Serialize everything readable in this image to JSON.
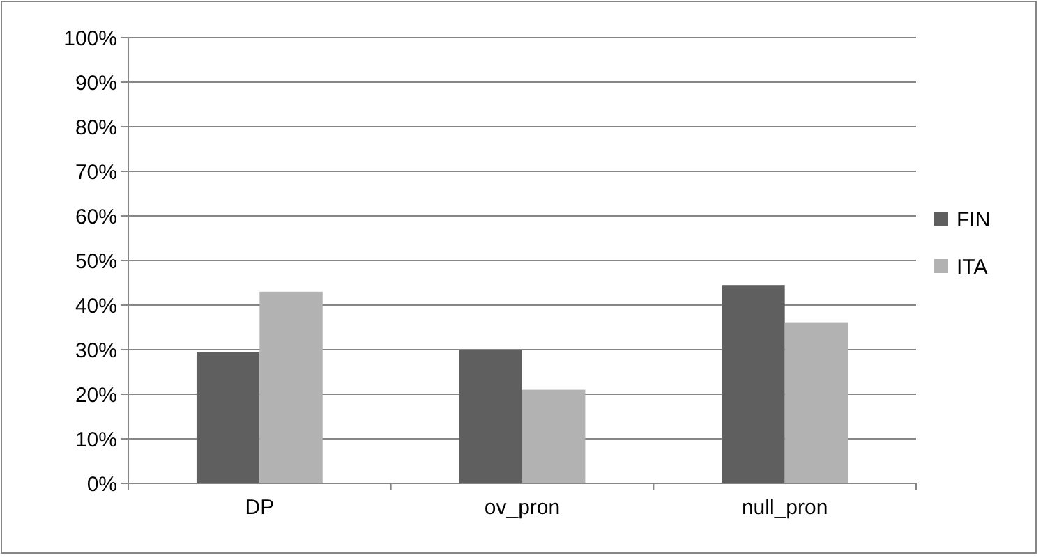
{
  "chart_data": {
    "type": "bar",
    "categories": [
      "DP",
      "ov_pron",
      "null_pron"
    ],
    "series": [
      {
        "name": "FIN",
        "color": "#5f5f5f",
        "values": [
          29.5,
          30,
          44.5
        ]
      },
      {
        "name": "ITA",
        "color": "#b2b2b2",
        "values": [
          43,
          21,
          36
        ]
      }
    ],
    "ylim": [
      0,
      100
    ],
    "yticks": [
      {
        "value": 0,
        "label": "0%"
      },
      {
        "value": 10,
        "label": "10%"
      },
      {
        "value": 20,
        "label": "20%"
      },
      {
        "value": 30,
        "label": "30%"
      },
      {
        "value": 40,
        "label": "40%"
      },
      {
        "value": 50,
        "label": "50%"
      },
      {
        "value": 60,
        "label": "60%"
      },
      {
        "value": 70,
        "label": "70%"
      },
      {
        "value": 80,
        "label": "80%"
      },
      {
        "value": 90,
        "label": "90%"
      },
      {
        "value": 100,
        "label": "100%"
      }
    ],
    "grid": "y",
    "legend": "right"
  }
}
